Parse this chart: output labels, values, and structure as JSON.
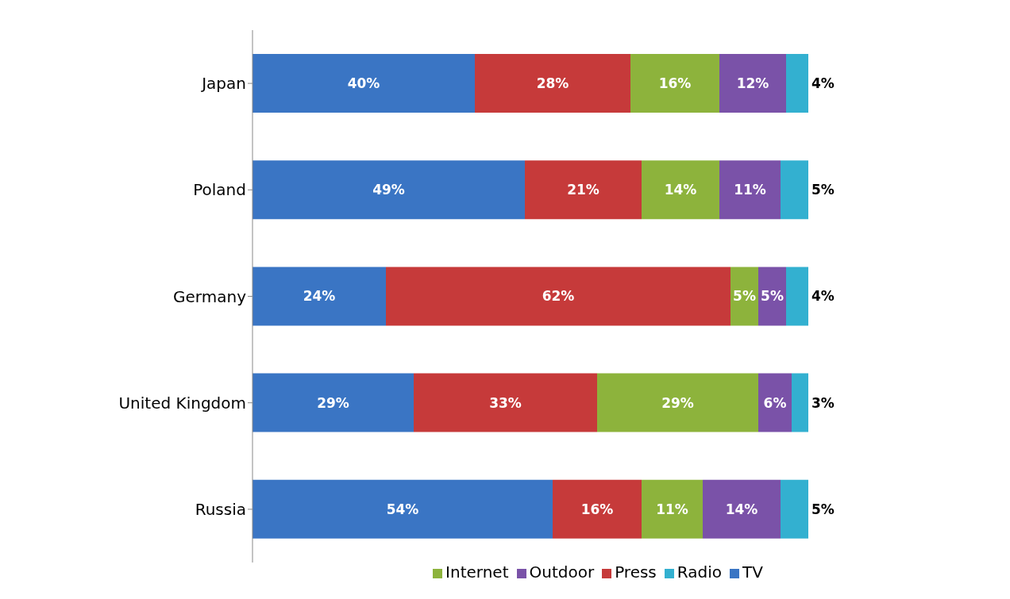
{
  "chart_data": {
    "type": "bar",
    "orientation": "horizontal",
    "stacked": true,
    "categories": [
      "Japan",
      "Poland",
      "Germany",
      "United Kingdom",
      "Russia"
    ],
    "series": [
      {
        "name": "TV",
        "color": "#3a75c4",
        "values": [
          40,
          49,
          24,
          29,
          54
        ],
        "value_labels": [
          "40%",
          "49%",
          "24%",
          "29%",
          "54%"
        ]
      },
      {
        "name": "Press",
        "color": "#c63a3a",
        "values": [
          28,
          21,
          62,
          33,
          16
        ],
        "value_labels": [
          "28%",
          "21%",
          "62%",
          "33%",
          "16%"
        ]
      },
      {
        "name": "Internet",
        "color": "#8db33c",
        "values": [
          16,
          14,
          5,
          29,
          11
        ],
        "value_labels": [
          "16%",
          "14%",
          "5%",
          "29%",
          "11%"
        ]
      },
      {
        "name": "Outdoor",
        "color": "#7a52a8",
        "values": [
          12,
          11,
          5,
          6,
          14
        ],
        "value_labels": [
          "12%",
          "11%",
          "5%",
          "6%",
          "14%"
        ]
      },
      {
        "name": "Radio",
        "color": "#33b0d0",
        "values": [
          4,
          5,
          4,
          3,
          5
        ],
        "value_labels": [
          "4%",
          "5%",
          "4%",
          "3%",
          "5%"
        ]
      }
    ],
    "legend": "bottom",
    "grid": false
  }
}
